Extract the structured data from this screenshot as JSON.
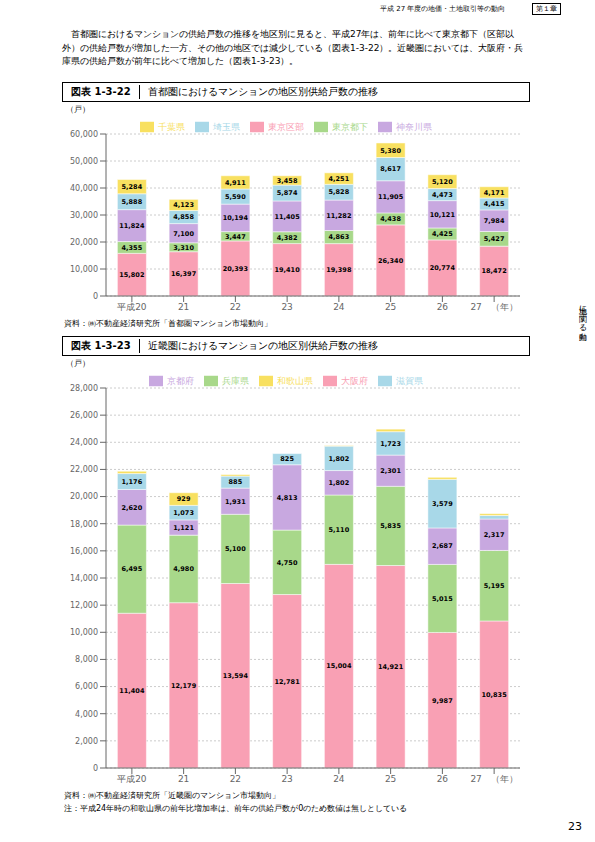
{
  "annotations": [
    "平成 27 年度の地価・土地取引等の動向",
    "第１章",
    "土地に関する動向",
    "　首都圏におけるマンションの供給戸数の推移を地区別に見ると、平成27年は、前年に比べて東京都下（区部以外）の供給戸数が増加した一方、その他の地区では減少している（図表1-3-22）。近畿圏においては、大阪府・兵庫県の供給戸数が前年に比べて増加した（図表1-3-23）。",
    "23"
  ],
  "chart_data": [
    {
      "type": "bar",
      "stacked": true,
      "title": "首都圏におけるマンションの地区別供給戸数の推移",
      "annotations": [
        "図表 1-3-22",
        "資料：㈱不動産経済研究所「首都圏マンション市場動向」"
      ],
      "ylabel": "（戸）",
      "categories": [
        "平成20",
        "21",
        "22",
        "23",
        "24",
        "25",
        "26",
        "27　（年）"
      ],
      "ylim": [
        0,
        60000
      ],
      "yticks": [
        0,
        {
          "value": 10000,
          "label": "10,000"
        },
        {
          "value": 20000,
          "label": "20,000"
        },
        {
          "value": 30000,
          "label": "30,000"
        },
        {
          "value": 40000,
          "label": "40,000"
        },
        {
          "value": 50000,
          "label": "50,000"
        },
        {
          "value": 60000,
          "label": "60,000"
        }
      ],
      "grid": true,
      "legend": "top",
      "data_labels": true,
      "series": [
        {
          "name": "東京区部",
          "color": "#F9A0B4",
          "values": [
            15802,
            16397,
            20393,
            19410,
            19398,
            26340,
            20774,
            18472
          ],
          "value_labels": [
            "15,802",
            "16,397",
            "20,393",
            "19,410",
            "19,398",
            "26,340",
            "20,774",
            "18,472"
          ]
        },
        {
          "name": "東京都下",
          "color": "#A8D88A",
          "values": [
            4355,
            3310,
            3447,
            4382,
            4863,
            4438,
            4425,
            5427
          ],
          "value_labels": [
            "4,355",
            "3,310",
            "3,447",
            "4,382",
            "4,863",
            "4,438",
            "4,425",
            "5,427"
          ]
        },
        {
          "name": "神奈川県",
          "color": "#C8A8E0",
          "values": [
            11824,
            7100,
            10194,
            11405,
            11282,
            11905,
            10121,
            7984
          ],
          "value_labels": [
            "11,824",
            "7,100",
            "10,194",
            "11,405",
            "11,282",
            "11,905",
            "10,121",
            "7,984"
          ]
        },
        {
          "name": "埼玉県",
          "color": "#A8D8E8",
          "values": [
            5888,
            4858,
            5590,
            5874,
            5828,
            8617,
            4473,
            4415
          ],
          "value_labels": [
            "5,888",
            "4,858",
            "5,590",
            "5,874",
            "5,828",
            "8,617",
            "4,473",
            "4,415"
          ]
        },
        {
          "name": "千葉県",
          "color": "#F8E060",
          "values": [
            5284,
            4123,
            4911,
            3458,
            4251,
            5380,
            5120,
            4171
          ],
          "value_labels": [
            "5,284",
            "4,123",
            "4,911",
            "3,458",
            "4,251",
            "5,380",
            "5,120",
            "4,171"
          ]
        }
      ]
    },
    {
      "type": "bar",
      "stacked": true,
      "title": "近畿圏におけるマンションの地区別供給戸数の推移",
      "annotations": [
        "図表 1-3-23",
        "資料：㈱不動産経済研究所「近畿圏のマンション市場動向」",
        "注：平成24年時の和歌山県の前年比増加率は、前年の供給戸数が0のため数値は無しとしている"
      ],
      "ylabel": "（戸）",
      "categories": [
        "平成20",
        "21",
        "22",
        "23",
        "24",
        "25",
        "26",
        "27　（年）"
      ],
      "ylim": [
        0,
        28000
      ],
      "yticks": [
        0,
        {
          "value": 2000,
          "label": "2,000"
        },
        {
          "value": 4000,
          "label": "4,000"
        },
        {
          "value": 6000,
          "label": "6,000"
        },
        {
          "value": 8000,
          "label": "8,000"
        },
        {
          "value": 10000,
          "label": "10,000"
        },
        {
          "value": 12000,
          "label": "12,000"
        },
        {
          "value": 14000,
          "label": "14,000"
        },
        {
          "value": 16000,
          "label": "16,000"
        },
        {
          "value": 18000,
          "label": "18,000"
        },
        {
          "value": 20000,
          "label": "20,000"
        },
        {
          "value": 22000,
          "label": "22,000"
        },
        {
          "value": 24000,
          "label": "24,000"
        },
        {
          "value": 26000,
          "label": "26,000"
        },
        {
          "value": 28000,
          "label": "28,000"
        }
      ],
      "grid": true,
      "legend": "top",
      "data_labels": true,
      "series": [
        {
          "name": "大阪府",
          "color": "#F9A0B4",
          "values": [
            11404,
            12179,
            13594,
            12781,
            15004,
            14921,
            9987,
            10835
          ],
          "value_labels": [
            "11,404",
            "12,179",
            "13,594",
            "12,781",
            "15,004",
            "14,921",
            "9,987",
            "10,835"
          ]
        },
        {
          "name": "兵庫県",
          "color": "#A8D88A",
          "values": [
            6495,
            4980,
            5100,
            4750,
            5110,
            5835,
            5015,
            5195
          ],
          "value_labels": [
            "6,495",
            "4,980",
            "5,100",
            "4,750",
            "5,110",
            "5,835",
            "5,015",
            "5,195"
          ]
        },
        {
          "name": "京都府",
          "color": "#C8A8E0",
          "values": [
            2620,
            1121,
            1931,
            4813,
            1802,
            2301,
            2687,
            2317
          ],
          "value_labels": [
            "2,620",
            "1,121",
            "1,931",
            "4,813",
            "1,802",
            "2,301",
            "2,687",
            "2,317"
          ]
        },
        {
          "name": "滋賀県",
          "color": "#A8D8E8",
          "values": [
            1176,
            1073,
            885,
            825,
            1802,
            1723,
            3579,
            259
          ],
          "value_labels": [
            "1,176",
            "1,073",
            "885",
            "825",
            "1,802",
            "1,723",
            "3,579",
            null
          ]
        },
        {
          "name": "和歌山県",
          "color": "#F8E060",
          "values": [
            171,
            929,
            110,
            0,
            44,
            188,
            152,
            135
          ],
          "value_labels": [
            null,
            "929",
            null,
            null,
            null,
            null,
            null,
            null
          ]
        }
      ]
    }
  ]
}
